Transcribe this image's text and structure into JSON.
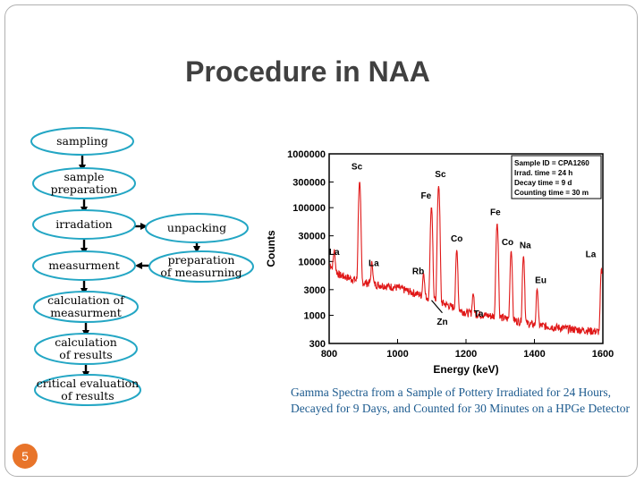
{
  "slide": {
    "title": "Procedure in NAA",
    "number": "5",
    "caption": "Gamma Spectra from a Sample of Pottery Irradiated for 24 Hours, Decayed for 9 Days, and Counted for 30 Minutes on a HPGe Detector"
  },
  "flowchart": {
    "nodes": [
      {
        "id": "sampling",
        "lines": [
          "sampling"
        ]
      },
      {
        "id": "sample-preparation",
        "lines": [
          "sample",
          "preparation"
        ]
      },
      {
        "id": "irradiation",
        "lines": [
          "irradation"
        ]
      },
      {
        "id": "unpacking",
        "lines": [
          "unpacking"
        ]
      },
      {
        "id": "measurement",
        "lines": [
          "measurment"
        ]
      },
      {
        "id": "preparation-of-measuring",
        "lines": [
          "preparation",
          "of measurning"
        ]
      },
      {
        "id": "calculation-of-measurement",
        "lines": [
          "calculation of",
          "measurment"
        ]
      },
      {
        "id": "calculation-of-results",
        "lines": [
          "calculation",
          "of results"
        ]
      },
      {
        "id": "critical-evaluation",
        "lines": [
          "critical evaluation",
          "of results"
        ]
      }
    ]
  },
  "chart_data": {
    "type": "line",
    "title": "",
    "xlabel": "Energy (keV)",
    "ylabel": "Counts",
    "xlim": [
      800,
      1600
    ],
    "ylim": [
      300,
      1000000
    ],
    "y_scale": "log",
    "x_ticks": [
      "800",
      "1000",
      "1200",
      "1400",
      "1600"
    ],
    "y_ticks": [
      "300",
      "1000",
      "3000",
      "10000",
      "30000",
      "100000",
      "300000",
      "1000000"
    ],
    "series_color": "#e01818",
    "info_box": [
      "Sample ID = CPA1260",
      "Irrad. time    = 24 h",
      "Decay time     =  9 d",
      "Counting time = 30 m"
    ],
    "peaks": [
      {
        "label": "La",
        "energy": 815,
        "counts": 9000
      },
      {
        "label": "Sc",
        "energy": 889,
        "counts": 300000
      },
      {
        "label": "La",
        "energy": 925,
        "counts": 6000
      },
      {
        "label": "Fe",
        "energy": 1099,
        "counts": 100000
      },
      {
        "label": "Sc",
        "energy": 1120,
        "counts": 250000
      },
      {
        "label": "Rb",
        "energy": 1076,
        "counts": 4000
      },
      {
        "label": "Co",
        "energy": 1173,
        "counts": 15000
      },
      {
        "label": "Ta",
        "energy": 1221,
        "counts": 1500
      },
      {
        "label": "Fe",
        "energy": 1291,
        "counts": 50000
      },
      {
        "label": "Co",
        "energy": 1332,
        "counts": 15000
      },
      {
        "label": "Na",
        "energy": 1368,
        "counts": 12000
      },
      {
        "label": "Eu",
        "energy": 1408,
        "counts": 2500
      },
      {
        "label": "La",
        "energy": 1596,
        "counts": 7000
      },
      {
        "label": "Zn",
        "energy": 1115,
        "counts": 1200
      }
    ]
  }
}
